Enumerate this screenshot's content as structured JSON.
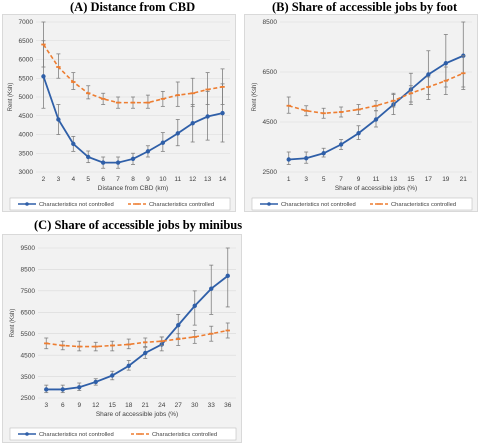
{
  "colors": {
    "not_controlled": "#2f5fa8",
    "controlled": "#ed7d31",
    "panel_bg": "#f2f2f2",
    "grid": "#d9d9d9",
    "axis_text": "#404040"
  },
  "chart_data": [
    {
      "id": "A",
      "type": "line",
      "title": "(A) Distance from CBD",
      "xlabel": "Distance from CBD (km)",
      "ylabel": "Rent (Ksh)",
      "categories": [
        "2",
        "3",
        "4",
        "5",
        "6",
        "7",
        "8",
        "9",
        "10",
        "11",
        "12",
        "13",
        "14"
      ],
      "ylim": [
        3000,
        7000
      ],
      "yticks": [
        "3000",
        "3500",
        "4000",
        "4500",
        "5000",
        "5500",
        "6000",
        "6500",
        "7000"
      ],
      "grid": true,
      "legend_position": "bottom",
      "series": [
        {
          "name": "Characteristics not controlled",
          "values": [
            5550,
            4400,
            3750,
            3400,
            3250,
            3250,
            3350,
            3550,
            3780,
            4030,
            4300,
            4480,
            4570
          ],
          "err_low": [
            4700,
            4000,
            3550,
            3250,
            3100,
            3100,
            3200,
            3400,
            3550,
            3700,
            3800,
            3850,
            3800
          ],
          "err_high": [
            6500,
            4800,
            3950,
            3560,
            3400,
            3400,
            3500,
            3700,
            4050,
            4400,
            4800,
            5150,
            5350
          ]
        },
        {
          "name": "Characteristics controlled",
          "values": [
            6400,
            5800,
            5400,
            5100,
            4950,
            4850,
            4850,
            4850,
            4950,
            5050,
            5100,
            5200,
            5270
          ],
          "err_low": [
            5800,
            5500,
            5200,
            4950,
            4800,
            4700,
            4700,
            4700,
            4750,
            4750,
            4750,
            4800,
            4800
          ],
          "err_high": [
            7000,
            6150,
            5650,
            5300,
            5100,
            5000,
            5000,
            5050,
            5150,
            5400,
            5500,
            5650,
            5750
          ]
        }
      ]
    },
    {
      "id": "B",
      "type": "line",
      "title": "(B) Share of accessible jobs by foot",
      "xlabel": "Share of accessible jobs (%)",
      "ylabel": "Rent (Ksh)",
      "categories": [
        "1",
        "3",
        "5",
        "7",
        "9",
        "11",
        "13",
        "15",
        "17",
        "19",
        "21"
      ],
      "ylim": [
        2500,
        8500
      ],
      "yticks": [
        "2500",
        "4500",
        "6500",
        "8500"
      ],
      "grid": true,
      "legend_position": "bottom",
      "series": [
        {
          "name": "Characteristics not controlled",
          "values": [
            3000,
            3050,
            3250,
            3600,
            4050,
            4600,
            5200,
            5800,
            6400,
            6850,
            7150
          ],
          "err_low": [
            2800,
            2850,
            3100,
            3400,
            3800,
            4300,
            4800,
            5200,
            5600,
            5900,
            5900
          ],
          "err_high": [
            3300,
            3300,
            3450,
            3800,
            4350,
            4950,
            5600,
            6450,
            7350,
            8000,
            8500
          ]
        },
        {
          "name": "Characteristics controlled",
          "values": [
            5150,
            4950,
            4850,
            4900,
            5000,
            5150,
            5350,
            5650,
            5900,
            6150,
            6450
          ],
          "err_low": [
            4850,
            4750,
            4650,
            4700,
            4800,
            4950,
            5100,
            5300,
            5400,
            5600,
            5800
          ],
          "err_high": [
            5500,
            5150,
            5050,
            5100,
            5200,
            5350,
            5650,
            5950,
            6300,
            6700,
            7150
          ]
        }
      ]
    },
    {
      "id": "C",
      "type": "line",
      "title": "(C) Share of accessible jobs by minibus",
      "xlabel": "Share of accessible jobs (%)",
      "ylabel": "Rent (Ksh)",
      "categories": [
        "3",
        "6",
        "9",
        "12",
        "15",
        "18",
        "21",
        "24",
        "27",
        "30",
        "33",
        "36"
      ],
      "ylim": [
        2500,
        9500
      ],
      "yticks": [
        "2500",
        "3500",
        "4500",
        "5500",
        "6500",
        "7500",
        "8500",
        "9500"
      ],
      "grid": true,
      "legend_position": "bottom",
      "series": [
        {
          "name": "Characteristics not controlled",
          "values": [
            2900,
            2900,
            3000,
            3250,
            3550,
            4000,
            4600,
            5000,
            5900,
            6800,
            7600,
            8200
          ],
          "err_low": [
            2750,
            2750,
            2850,
            3100,
            3350,
            3800,
            4350,
            4700,
            5300,
            5900,
            6400,
            6750
          ],
          "err_high": [
            3100,
            3100,
            3200,
            3400,
            3750,
            4250,
            4850,
            5350,
            6400,
            7500,
            8700,
            9500
          ]
        },
        {
          "name": "Characteristics controlled",
          "values": [
            5050,
            4950,
            4900,
            4900,
            4950,
            5000,
            5100,
            5150,
            5250,
            5350,
            5500,
            5650
          ],
          "err_low": [
            4800,
            4750,
            4700,
            4700,
            4700,
            4800,
            4900,
            4950,
            4950,
            5050,
            5150,
            5300
          ],
          "err_high": [
            5300,
            5150,
            5150,
            5100,
            5150,
            5250,
            5300,
            5350,
            5500,
            5650,
            5850,
            6000
          ]
        }
      ]
    }
  ]
}
